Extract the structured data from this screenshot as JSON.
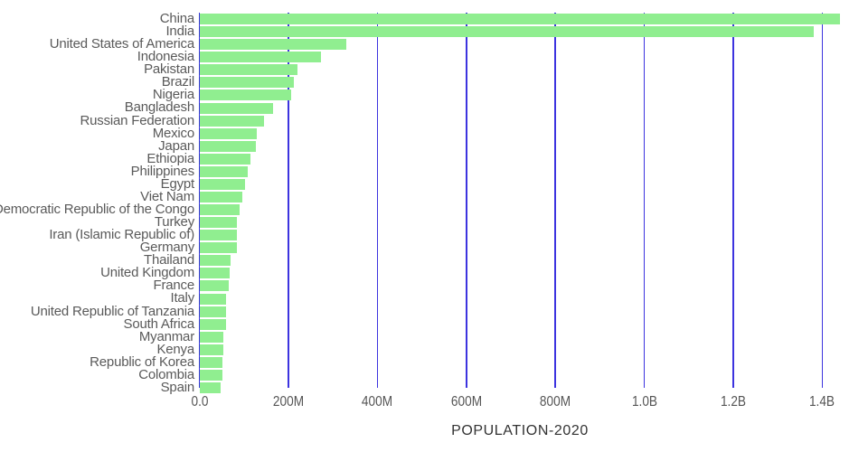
{
  "chart_data": {
    "type": "bar",
    "orientation": "horizontal",
    "title": "",
    "xlabel": "POPULATION-2020",
    "ylabel": "",
    "unit": "millions",
    "xlim": [
      0,
      1500
    ],
    "grid": "vertical-gridlines",
    "legend": "none",
    "categories": [
      "China",
      "India",
      "United States of America",
      "Indonesia",
      "Pakistan",
      "Brazil",
      "Nigeria",
      "Bangladesh",
      "Russian Federation",
      "Mexico",
      "Japan",
      "Ethiopia",
      "Philippines",
      "Egypt",
      "Viet Nam",
      "Democratic Republic of the Congo",
      "Turkey",
      "Iran (Islamic Republic of)",
      "Germany",
      "Thailand",
      "United Kingdom",
      "France",
      "Italy",
      "United Republic of Tanzania",
      "South Africa",
      "Myanmar",
      "Kenya",
      "Republic of Korea",
      "Colombia",
      "Spain"
    ],
    "values": [
      1439.3,
      1380.0,
      331.0,
      273.5,
      220.9,
      212.6,
      206.1,
      164.7,
      145.9,
      128.9,
      126.5,
      115.0,
      109.6,
      102.3,
      97.3,
      89.6,
      84.3,
      84.0,
      83.8,
      69.8,
      67.9,
      65.3,
      60.5,
      59.7,
      59.3,
      54.4,
      53.8,
      51.3,
      50.9,
      46.8
    ],
    "x_ticks": [
      {
        "value": 0,
        "label": "0.0"
      },
      {
        "value": 200,
        "label": "200M"
      },
      {
        "value": 400,
        "label": "400M"
      },
      {
        "value": 600,
        "label": "600M"
      },
      {
        "value": 800,
        "label": "800M"
      },
      {
        "value": 1000,
        "label": "1.0B"
      },
      {
        "value": 1200,
        "label": "1.2B"
      },
      {
        "value": 1400,
        "label": "1.4B"
      }
    ],
    "colors": {
      "bar": "#90EE90",
      "gridline": "#3C33DF",
      "label_text": "#5A5A5A",
      "tick_text": "#555555",
      "axis_title_text": "#333333",
      "background": "#FFFFFF"
    }
  }
}
